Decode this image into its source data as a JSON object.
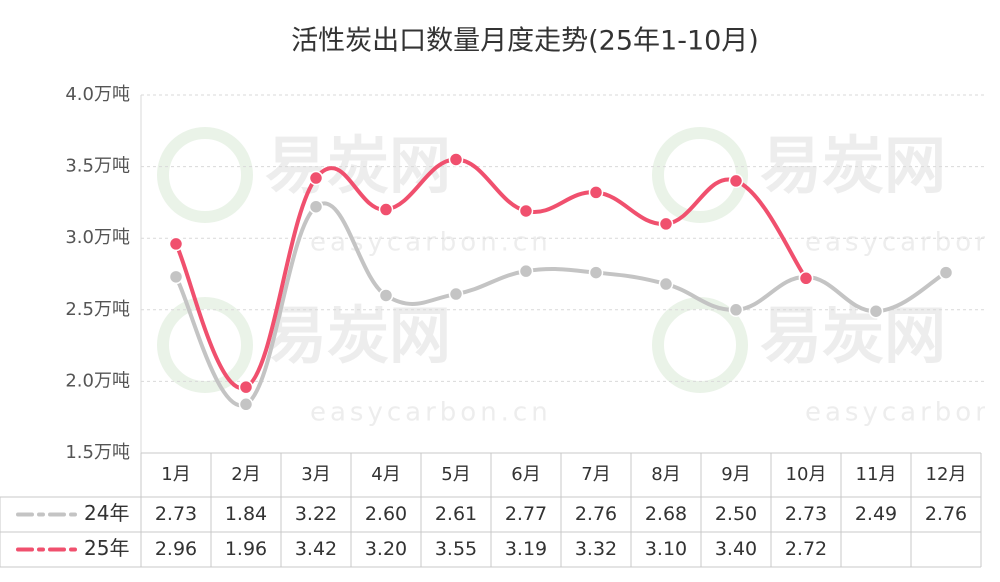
{
  "chart_data": {
    "type": "line",
    "title": "活性炭出口数量月度走势(25年1-10月)",
    "watermark": {
      "brand": "易炭网",
      "url": "easycarbon.cn"
    },
    "categories": [
      "1月",
      "2月",
      "3月",
      "4月",
      "5月",
      "6月",
      "7月",
      "8月",
      "9月",
      "10月",
      "11月",
      "12月"
    ],
    "series": [
      {
        "name": "24年",
        "color": "#c4c4c4",
        "values": [
          2.73,
          1.84,
          3.22,
          2.6,
          2.61,
          2.77,
          2.76,
          2.68,
          2.5,
          2.73,
          2.49,
          2.76
        ],
        "value_labels": [
          "2.73",
          "1.84",
          "3.22",
          "2.60",
          "2.61",
          "2.77",
          "2.76",
          "2.68",
          "2.50",
          "2.73",
          "2.49",
          "2.76"
        ]
      },
      {
        "name": "25年",
        "color": "#f0506e",
        "values": [
          2.96,
          1.96,
          3.42,
          3.2,
          3.55,
          3.19,
          3.32,
          3.1,
          3.4,
          2.72,
          null,
          null
        ],
        "value_labels": [
          "2.96",
          "1.96",
          "3.42",
          "3.20",
          "3.55",
          "3.19",
          "3.32",
          "3.10",
          "3.40",
          "2.72",
          null,
          null
        ]
      }
    ],
    "ylim": [
      1.5,
      4.0
    ],
    "yticks": [
      {
        "value": 1.5,
        "label": "1.5万吨"
      },
      {
        "value": 2.0,
        "label": "2.0万吨"
      },
      {
        "value": 2.5,
        "label": "2.5万吨"
      },
      {
        "value": 3.0,
        "label": "3.0万吨"
      },
      {
        "value": 3.5,
        "label": "3.5万吨"
      },
      {
        "value": 4.0,
        "label": "4.0万吨"
      }
    ],
    "grid": true
  }
}
